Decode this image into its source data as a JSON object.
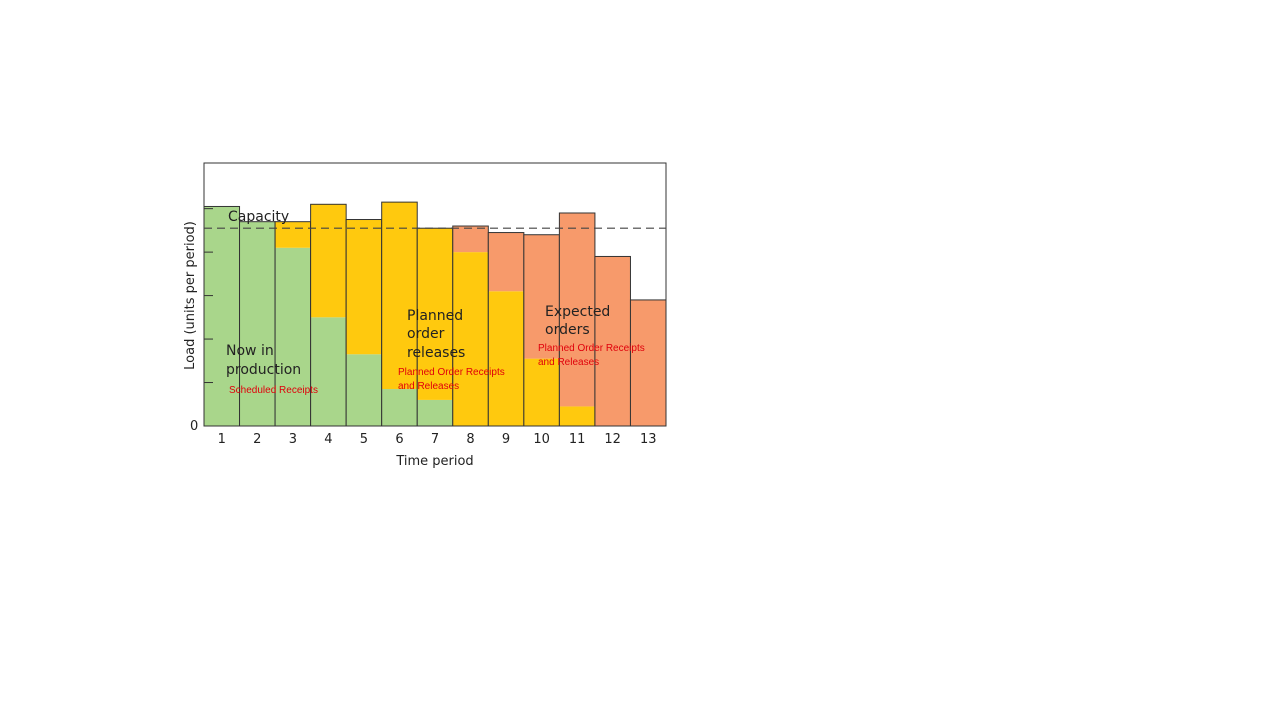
{
  "colors": {
    "scheduled": "#a9d68b",
    "planned": "#ffc90e",
    "expected": "#f79a6b",
    "outline": "#333333",
    "annotation": "#e0000b"
  },
  "chart_data": {
    "type": "bar",
    "stacked": true,
    "title": "",
    "xlabel": "Time period",
    "ylabel": "Load (units per period)",
    "categories": [
      "1",
      "2",
      "3",
      "4",
      "5",
      "6",
      "7",
      "8",
      "9",
      "10",
      "11",
      "12",
      "13"
    ],
    "series": [
      {
        "key": "scheduled",
        "values": [
          101,
          94,
          82,
          50,
          33,
          17,
          12,
          0,
          0,
          0,
          0,
          0,
          0
        ]
      },
      {
        "key": "planned",
        "values": [
          0,
          0,
          12,
          52,
          62,
          86,
          79,
          80,
          62,
          31,
          9,
          0,
          0
        ]
      },
      {
        "key": "expected",
        "values": [
          0,
          0,
          0,
          0,
          0,
          0,
          0,
          12,
          27,
          57,
          89,
          78,
          58
        ]
      }
    ],
    "capacity": 91,
    "capacity_label": "Capacity",
    "y_zero_label": "0",
    "ylim": [
      0,
      121
    ],
    "y_ticks": [
      0,
      20,
      40,
      60,
      80,
      100
    ],
    "region_labels": {
      "scheduled": [
        "Now in",
        "production"
      ],
      "planned": [
        "Planned",
        "order",
        "releases"
      ],
      "expected": [
        "Expected",
        "orders"
      ]
    },
    "annotations": {
      "scheduled": [
        "Scheduled Receipts"
      ],
      "planned": [
        "Planned Order Receipts",
        "and Releases"
      ],
      "expected": [
        "Planned Order Receipts",
        "and Releases"
      ]
    }
  }
}
